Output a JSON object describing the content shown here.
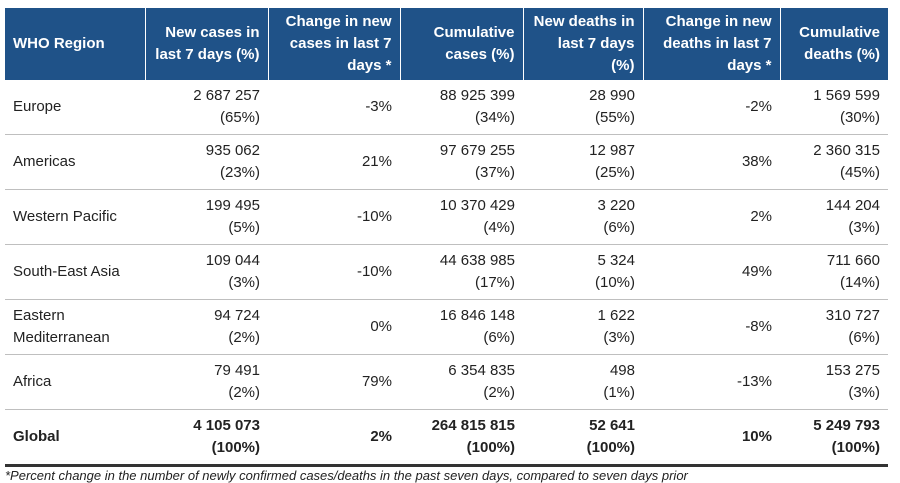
{
  "table": {
    "header": [
      "WHO Region",
      "New cases in last 7 days (%)",
      "Change in new cases in last 7 days *",
      "Cumulative cases (%)",
      "New deaths in last 7 days (%)",
      "Change in new deaths in last 7 days *",
      "Cumulative deaths (%)"
    ],
    "rows": [
      [
        [
          "Europe"
        ],
        [
          "2 687 257",
          "(65%)"
        ],
        [
          "-3%"
        ],
        [
          "88 925 399",
          "(34%)"
        ],
        [
          "28 990",
          "(55%)"
        ],
        [
          "-2%"
        ],
        [
          "1 569 599",
          "(30%)"
        ]
      ],
      [
        [
          "Americas"
        ],
        [
          "935 062",
          "(23%)"
        ],
        [
          "21%"
        ],
        [
          "97 679 255",
          "(37%)"
        ],
        [
          "12 987",
          "(25%)"
        ],
        [
          "38%"
        ],
        [
          "2 360 315",
          "(45%)"
        ]
      ],
      [
        [
          "Western Pacific"
        ],
        [
          "199 495",
          "(5%)"
        ],
        [
          "-10%"
        ],
        [
          "10 370 429",
          "(4%)"
        ],
        [
          "3 220",
          "(6%)"
        ],
        [
          "2%"
        ],
        [
          "144 204",
          "(3%)"
        ]
      ],
      [
        [
          "South-East Asia"
        ],
        [
          "109 044",
          "(3%)"
        ],
        [
          "-10%"
        ],
        [
          "44 638 985",
          "(17%)"
        ],
        [
          "5 324",
          "(10%)"
        ],
        [
          "49%"
        ],
        [
          "711 660",
          "(14%)"
        ]
      ],
      [
        [
          "Eastern",
          "Mediterranean"
        ],
        [
          "94 724",
          "(2%)"
        ],
        [
          "0%"
        ],
        [
          "16 846 148",
          "(6%)"
        ],
        [
          "1 622",
          "(3%)"
        ],
        [
          "-8%"
        ],
        [
          "310 727",
          "(6%)"
        ]
      ],
      [
        [
          "Africa"
        ],
        [
          "79 491",
          "(2%)"
        ],
        [
          "79%"
        ],
        [
          "6 354 835",
          "(2%)"
        ],
        [
          "498",
          "(1%)"
        ],
        [
          "-13%"
        ],
        [
          "153 275",
          "(3%)"
        ]
      ],
      [
        [
          "Global"
        ],
        [
          "4 105 073",
          "(100%)"
        ],
        [
          "2%"
        ],
        [
          "264 815 815",
          "(100%)"
        ],
        [
          "52 641",
          "(100%)"
        ],
        [
          "10%"
        ],
        [
          "5 249 793",
          "(100%)"
        ]
      ]
    ],
    "footnote": "*Percent change in the number of newly confirmed cases/deaths in the past seven days, compared to seven days prior"
  }
}
